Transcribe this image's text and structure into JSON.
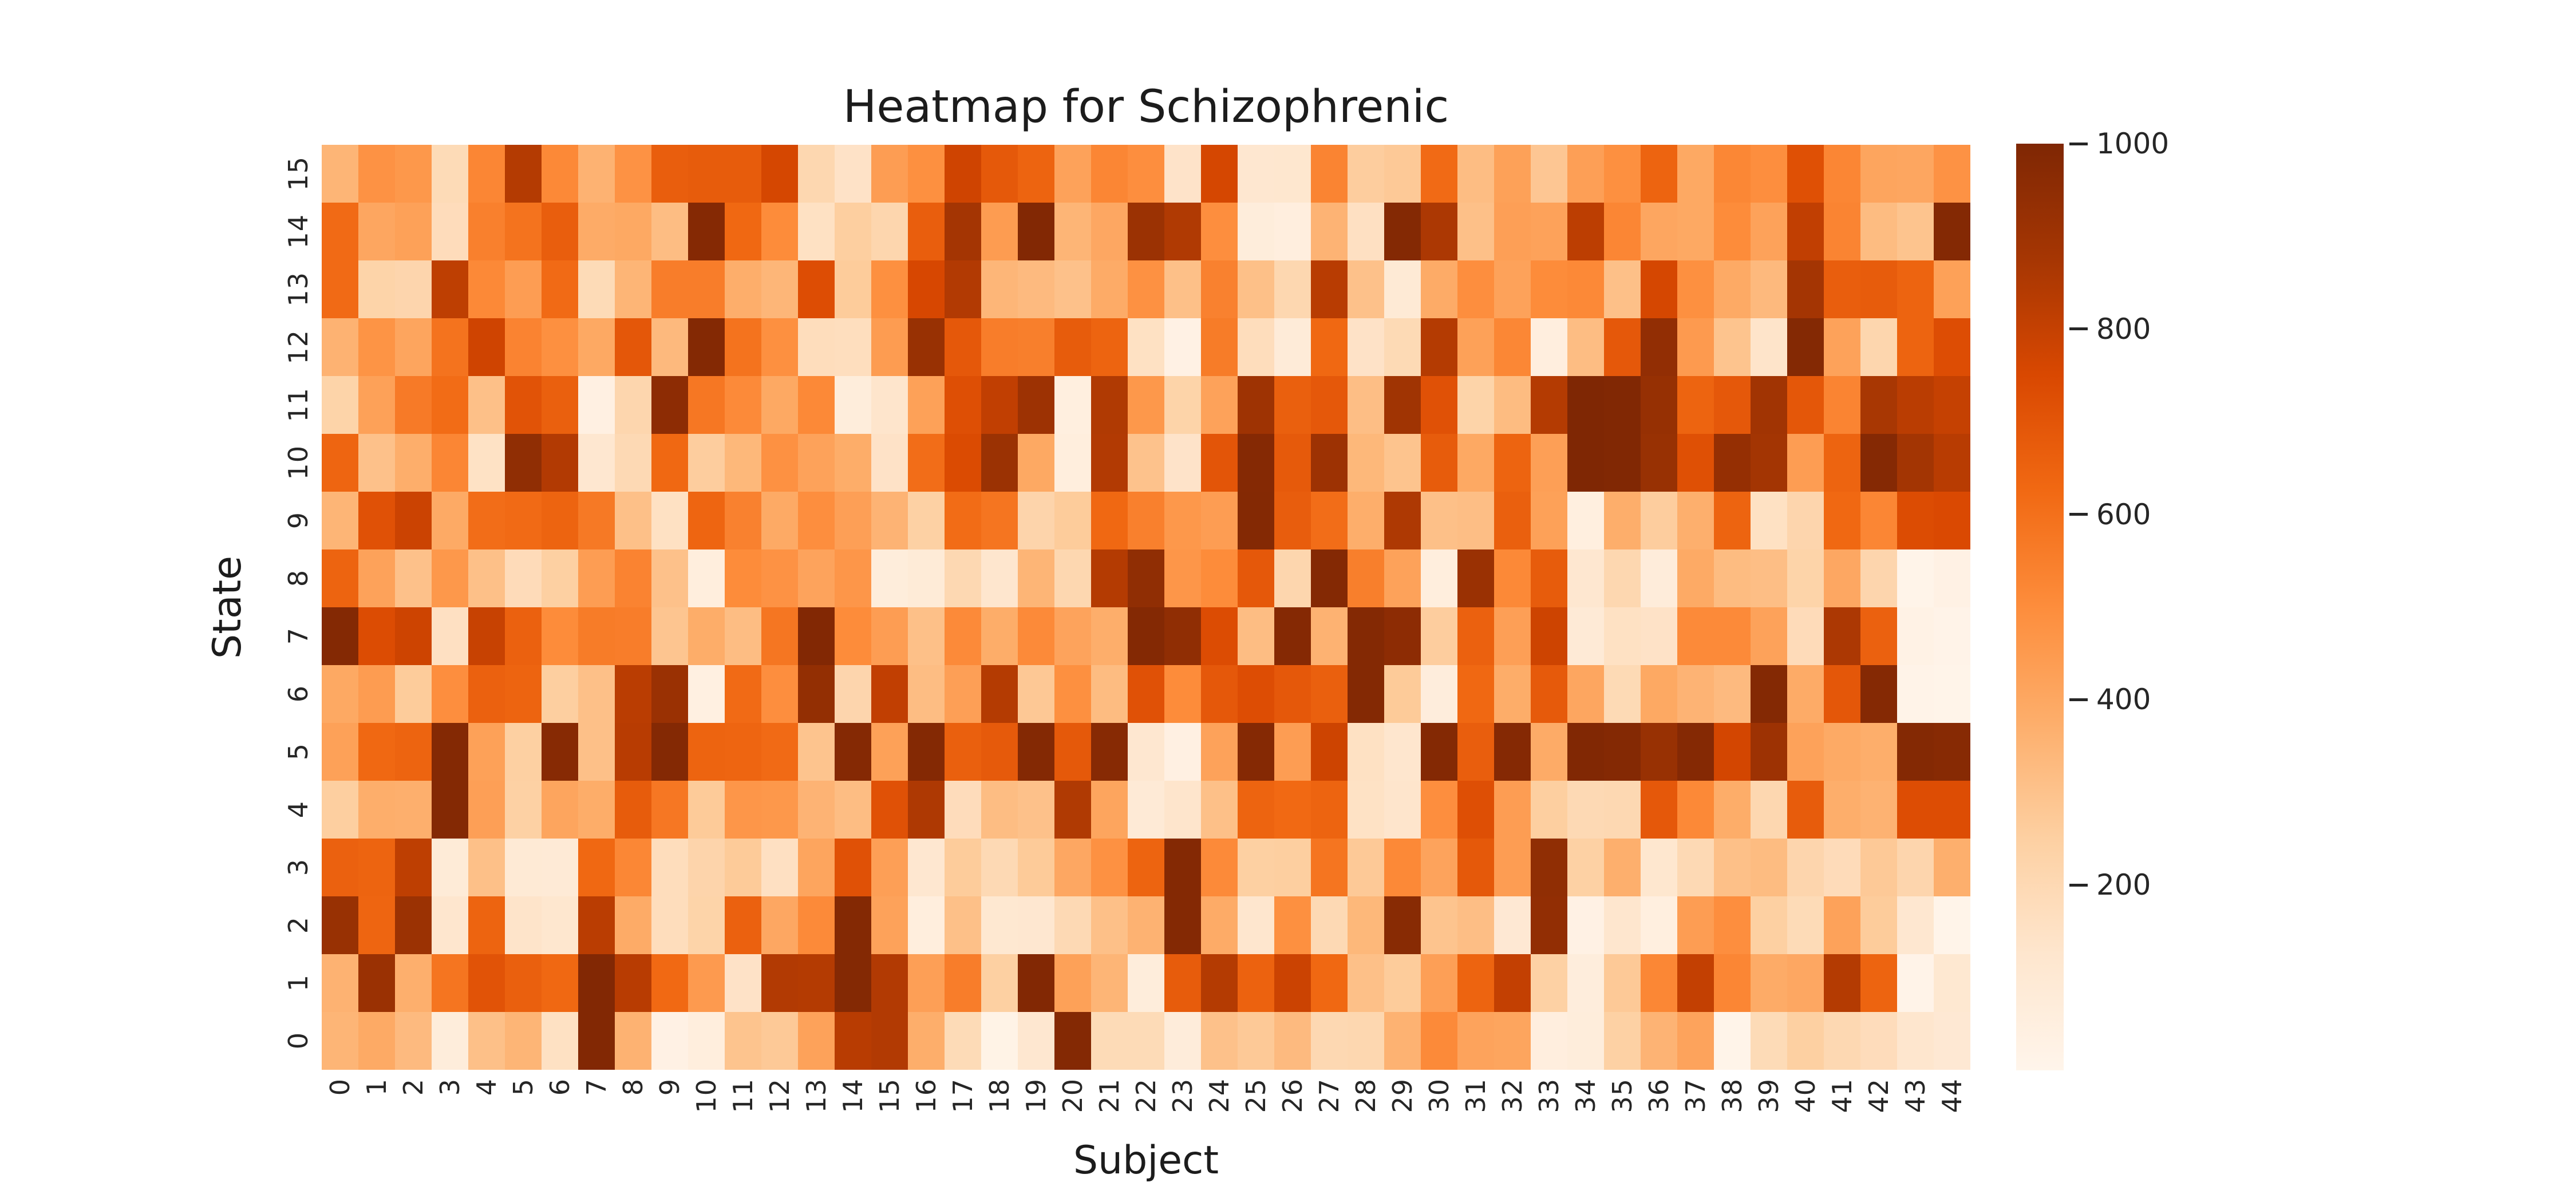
{
  "title": "Heatmap for Schizophrenic",
  "chart_data": {
    "type": "heatmap",
    "title": "Heatmap for Schizophrenic",
    "xlabel": "Subject",
    "ylabel": "State",
    "x_labels": [
      "0",
      "1",
      "2",
      "3",
      "4",
      "5",
      "6",
      "7",
      "8",
      "9",
      "10",
      "11",
      "12",
      "13",
      "14",
      "15",
      "16",
      "17",
      "18",
      "19",
      "20",
      "21",
      "22",
      "23",
      "24",
      "25",
      "26",
      "27",
      "28",
      "29",
      "30",
      "31",
      "32",
      "33",
      "34",
      "35",
      "36",
      "37",
      "38",
      "39",
      "40",
      "41",
      "42",
      "43",
      "44"
    ],
    "y_labels": [
      "15",
      "14",
      "13",
      "12",
      "11",
      "10",
      "9",
      "8",
      "7",
      "6",
      "5",
      "4",
      "3",
      "2",
      "1",
      "0"
    ],
    "colormap": {
      "name": "Oranges",
      "anchors": [
        "#fff5eb",
        "#fee6ce",
        "#fdd0a2",
        "#fdae6b",
        "#fd8d3c",
        "#f16913",
        "#d94801",
        "#a63603",
        "#7f2704"
      ]
    },
    "colorbar": {
      "vmin": 0,
      "vmax": 1000,
      "ticks": [
        1000,
        800,
        600,
        400,
        200
      ]
    },
    "grid": false,
    "legend_position": "right",
    "values": [
      [
        350,
        480,
        460,
        190,
        525,
        840,
        515,
        360,
        480,
        665,
        675,
        675,
        760,
        210,
        145,
        440,
        490,
        775,
        685,
        645,
        420,
        525,
        495,
        140,
        760,
        115,
        120,
        530,
        260,
        275,
        620,
        320,
        425,
        285,
        430,
        490,
        645,
        395,
        520,
        495,
        720,
        525,
        410,
        405,
        480
      ],
      [
        620,
        405,
        425,
        180,
        545,
        590,
        665,
        385,
        395,
        320,
        980,
        630,
        505,
        155,
        255,
        215,
        665,
        880,
        445,
        990,
        350,
        400,
        910,
        850,
        495,
        70,
        55,
        355,
        160,
        985,
        860,
        310,
        430,
        420,
        820,
        525,
        405,
        395,
        505,
        420,
        810,
        530,
        325,
        295,
        985
      ],
      [
        620,
        230,
        220,
        815,
        515,
        440,
        620,
        190,
        350,
        555,
        555,
        375,
        345,
        730,
        265,
        490,
        755,
        845,
        345,
        330,
        305,
        385,
        485,
        310,
        540,
        310,
        210,
        830,
        305,
        95,
        385,
        495,
        420,
        505,
        515,
        310,
        760,
        490,
        390,
        335,
        880,
        665,
        675,
        645,
        425
      ],
      [
        360,
        475,
        410,
        590,
        775,
        535,
        490,
        395,
        695,
        335,
        985,
        590,
        490,
        175,
        170,
        445,
        920,
        690,
        555,
        550,
        675,
        645,
        155,
        30,
        560,
        175,
        80,
        630,
        145,
        195,
        840,
        425,
        520,
        55,
        320,
        690,
        940,
        450,
        295,
        135,
        985,
        420,
        215,
        645,
        730
      ],
      [
        230,
        425,
        565,
        615,
        310,
        710,
        660,
        40,
        215,
        955,
        575,
        510,
        395,
        515,
        70,
        130,
        425,
        725,
        810,
        905,
        50,
        850,
        460,
        230,
        420,
        900,
        660,
        690,
        315,
        895,
        715,
        230,
        325,
        840,
        1000,
        995,
        925,
        645,
        690,
        890,
        695,
        530,
        870,
        825,
        800
      ],
      [
        640,
        305,
        375,
        525,
        150,
        945,
        845,
        115,
        200,
        630,
        260,
        340,
        485,
        420,
        380,
        145,
        610,
        740,
        910,
        395,
        60,
        845,
        300,
        140,
        700,
        980,
        680,
        905,
        340,
        295,
        675,
        395,
        645,
        430,
        1000,
        995,
        920,
        720,
        930,
        885,
        440,
        645,
        980,
        885,
        830
      ],
      [
        350,
        715,
        785,
        390,
        610,
        620,
        645,
        570,
        310,
        155,
        640,
        540,
        390,
        495,
        430,
        355,
        245,
        615,
        585,
        225,
        265,
        630,
        545,
        460,
        440,
        985,
        670,
        610,
        375,
        855,
        310,
        315,
        660,
        425,
        50,
        375,
        260,
        370,
        645,
        155,
        220,
        630,
        525,
        735,
        745
      ],
      [
        645,
        420,
        305,
        460,
        310,
        185,
        250,
        440,
        535,
        305,
        60,
        505,
        480,
        415,
        465,
        70,
        85,
        205,
        125,
        350,
        210,
        840,
        945,
        465,
        505,
        690,
        215,
        985,
        550,
        420,
        60,
        915,
        515,
        675,
        115,
        210,
        75,
        390,
        325,
        315,
        230,
        400,
        220,
        10,
        30
      ],
      [
        985,
        735,
        780,
        160,
        795,
        655,
        505,
        560,
        555,
        290,
        380,
        320,
        580,
        990,
        505,
        440,
        310,
        510,
        380,
        510,
        415,
        375,
        985,
        945,
        735,
        320,
        980,
        360,
        985,
        955,
        260,
        655,
        430,
        780,
        90,
        155,
        145,
        510,
        510,
        420,
        185,
        860,
        655,
        25,
        15
      ],
      [
        395,
        445,
        265,
        495,
        655,
        645,
        255,
        310,
        825,
        915,
        45,
        620,
        495,
        935,
        220,
        810,
        320,
        430,
        840,
        280,
        490,
        325,
        715,
        505,
        690,
        730,
        690,
        660,
        985,
        270,
        65,
        630,
        380,
        680,
        405,
        195,
        395,
        355,
        330,
        985,
        385,
        695,
        980,
        15,
        10
      ],
      [
        425,
        630,
        645,
        985,
        425,
        250,
        975,
        310,
        830,
        985,
        645,
        640,
        620,
        295,
        980,
        425,
        985,
        660,
        680,
        985,
        685,
        975,
        115,
        40,
        420,
        980,
        440,
        780,
        155,
        125,
        985,
        665,
        980,
        385,
        995,
        985,
        920,
        980,
        765,
        905,
        420,
        390,
        375,
        985,
        975
      ],
      [
        255,
        375,
        370,
        985,
        430,
        245,
        410,
        380,
        675,
        575,
        270,
        465,
        460,
        355,
        320,
        715,
        855,
        180,
        320,
        305,
        850,
        410,
        90,
        130,
        310,
        645,
        625,
        645,
        150,
        130,
        495,
        725,
        440,
        255,
        200,
        205,
        690,
        515,
        380,
        210,
        675,
        375,
        360,
        730,
        730
      ],
      [
        655,
        645,
        815,
        85,
        310,
        95,
        90,
        630,
        520,
        175,
        225,
        270,
        160,
        410,
        715,
        430,
        115,
        265,
        200,
        270,
        400,
        485,
        645,
        985,
        510,
        250,
        255,
        585,
        275,
        515,
        415,
        685,
        440,
        945,
        245,
        370,
        120,
        200,
        310,
        325,
        220,
        185,
        275,
        220,
        370
      ],
      [
        920,
        640,
        910,
        125,
        645,
        135,
        120,
        825,
        385,
        175,
        230,
        655,
        400,
        510,
        985,
        420,
        60,
        310,
        110,
        115,
        200,
        310,
        360,
        985,
        385,
        125,
        490,
        200,
        340,
        970,
        295,
        315,
        105,
        940,
        30,
        125,
        50,
        440,
        495,
        250,
        190,
        420,
        265,
        115,
        10
      ],
      [
        360,
        915,
        370,
        585,
        710,
        660,
        630,
        990,
        830,
        625,
        450,
        145,
        845,
        840,
        985,
        845,
        430,
        555,
        250,
        990,
        425,
        350,
        70,
        675,
        840,
        650,
        785,
        630,
        310,
        265,
        430,
        645,
        805,
        245,
        65,
        275,
        520,
        805,
        525,
        385,
        400,
        840,
        645,
        15,
        110
      ],
      [
        350,
        390,
        330,
        70,
        310,
        350,
        155,
        990,
        360,
        30,
        60,
        295,
        275,
        420,
        830,
        845,
        375,
        190,
        20,
        115,
        985,
        190,
        190,
        75,
        305,
        275,
        330,
        205,
        210,
        360,
        510,
        415,
        410,
        55,
        70,
        245,
        355,
        415,
        10,
        190,
        250,
        205,
        180,
        125,
        105
      ]
    ]
  }
}
